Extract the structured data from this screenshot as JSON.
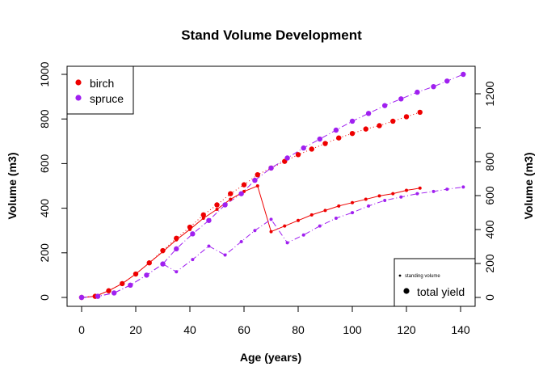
{
  "chart_data": {
    "type": "scatter",
    "title": "Stand Volume Development",
    "xlabel": "Age (years)",
    "ylabel_left": "Volume (m3)",
    "ylabel_right": "Volume (m3)",
    "xlim": [
      0,
      140
    ],
    "ylim_left": [
      0,
      1000
    ],
    "ylim_right": [
      0,
      1300
    ],
    "xticks": [
      "0",
      "20",
      "40",
      "60",
      "80",
      "100",
      "120",
      "140"
    ],
    "yticks_left": [
      "0",
      "200",
      "400",
      "600",
      "800",
      "1000"
    ],
    "yticks_right": [
      "0",
      "200",
      "400",
      "600",
      "800",
      "1200"
    ],
    "grid": false,
    "legend_species": {
      "position": "top-left",
      "entries": [
        {
          "name": "birch",
          "color": "#ee0000"
        },
        {
          "name": "spruce",
          "color": "#a020f0"
        }
      ]
    },
    "legend_type": {
      "position": "bottom-right",
      "entries": [
        {
          "name": "standing volume"
        },
        {
          "name": "total yield"
        }
      ]
    },
    "series": [
      {
        "name": "birch",
        "color": "#ee0000",
        "standing_volume": {
          "x": [
            0,
            5,
            10,
            15,
            20,
            25,
            30,
            35,
            40,
            45,
            50,
            55,
            60,
            65,
            70,
            75,
            80,
            85,
            90,
            95,
            100,
            105,
            110,
            115,
            120,
            125
          ],
          "y": [
            0,
            5,
            30,
            62,
            105,
            155,
            205,
            258,
            305,
            355,
            395,
            440,
            475,
            500,
            295,
            320,
            345,
            370,
            390,
            410,
            425,
            440,
            455,
            465,
            480,
            490
          ]
        },
        "total_yield": {
          "x": [
            0,
            5,
            10,
            15,
            20,
            25,
            30,
            35,
            40,
            45,
            50,
            55,
            60,
            65,
            70,
            75,
            80,
            85,
            90,
            95,
            100,
            105,
            110,
            115,
            120,
            125
          ],
          "y": [
            0,
            5,
            30,
            62,
            105,
            155,
            210,
            265,
            315,
            370,
            415,
            465,
            505,
            550,
            580,
            610,
            640,
            665,
            690,
            715,
            735,
            755,
            770,
            790,
            810,
            830
          ]
        }
      },
      {
        "name": "spruce",
        "color": "#a020f0",
        "standing_volume": {
          "x": [
            0,
            6,
            12,
            18,
            24,
            30,
            35,
            41,
            47,
            53,
            59,
            64,
            70,
            76,
            82,
            88,
            94,
            100,
            106,
            112,
            118,
            124,
            130,
            135,
            141
          ],
          "y": [
            0,
            5,
            20,
            55,
            100,
            150,
            115,
            170,
            230,
            190,
            250,
            300,
            350,
            245,
            280,
            320,
            355,
            380,
            410,
            435,
            450,
            465,
            475,
            485,
            495
          ]
        },
        "total_yield": {
          "x": [
            0,
            6,
            12,
            18,
            24,
            30,
            35,
            41,
            47,
            53,
            59,
            64,
            70,
            76,
            82,
            88,
            94,
            100,
            106,
            112,
            118,
            124,
            130,
            135,
            141
          ],
          "y": [
            0,
            5,
            20,
            55,
            100,
            150,
            218,
            285,
            345,
            415,
            465,
            525,
            580,
            625,
            670,
            710,
            750,
            790,
            825,
            860,
            890,
            920,
            945,
            970,
            1000
          ]
        }
      }
    ]
  }
}
